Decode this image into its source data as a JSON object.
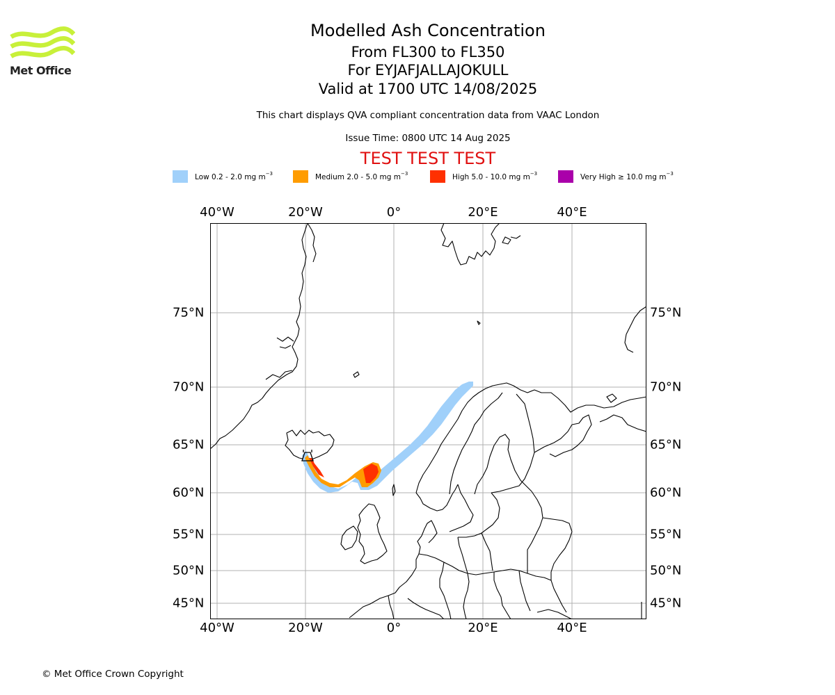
{
  "logo": {
    "text": "Met Office",
    "color": "#c8f03a"
  },
  "title": {
    "line1": "Modelled Ash Concentration",
    "line2": "From FL300 to FL350",
    "line3": "For EYJAFJALLAJOKULL",
    "line4": "Valid at 1700 UTC 14/08/2025"
  },
  "subtitle": "This chart displays QVA compliant concentration data from VAAC London",
  "issue_time": "Issue Time: 0800 UTC 14 Aug 2025",
  "test_banner": "TEST TEST TEST",
  "legend": [
    {
      "label": "Low 0.2 - 2.0 mg m",
      "exp": "−3",
      "color": "#a0d0fa"
    },
    {
      "label": "Medium 2.0 - 5.0 mg m",
      "exp": "−3",
      "color": "#ff9c00"
    },
    {
      "label": "High 5.0 - 10.0 mg m",
      "exp": "−3",
      "color": "#ff3000"
    },
    {
      "label": "Very High  ≥  10.0 mg m",
      "exp": "−3",
      "color": "#aa00aa"
    }
  ],
  "map": {
    "lon_ticks": [
      "40°W",
      "20°W",
      "0°",
      "20°E",
      "40°E"
    ],
    "lat_ticks": [
      "75°N",
      "70°N",
      "65°N",
      "60°N",
      "55°N",
      "50°N",
      "45°N"
    ],
    "source_volcano": "EYJAFJALLAJOKULL",
    "plume_colors": {
      "low": "#a0d0fa",
      "medium": "#ff9c00",
      "high": "#ff3000"
    }
  },
  "copyright": "© Met Office Crown Copyright"
}
